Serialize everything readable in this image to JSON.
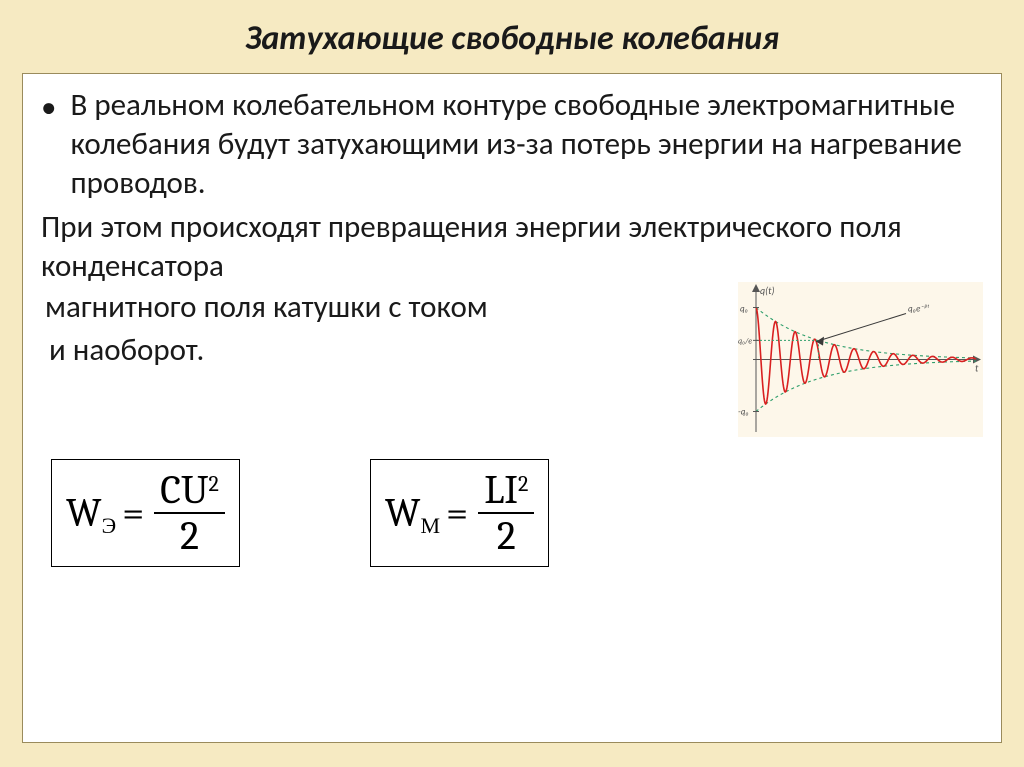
{
  "colors": {
    "slide_bg": "#f6eac2",
    "box_bg": "#ffffff",
    "box_border": "#9a8b5c",
    "title_color": "#1a1a1a",
    "text_color": "#1a1a1a",
    "bullet_color": "#1a1a1a",
    "formula_border": "#000000",
    "formula_text": "#000000"
  },
  "title": {
    "text": "Затухающие свободные колебания",
    "fontsize": 34
  },
  "body": {
    "fontsize": 31,
    "bullet_para": "В реальном колебательном контуре свободные электромагнитные колебания будут затухающими из-за потерь энергии на нагревание проводов.",
    "para2": "При этом происходят  превращения энергии электрического поля конденсатора",
    "line3": "магнитного поля катушки  с током",
    "line4": "и наоборот."
  },
  "formula1": {
    "W": "W",
    "sub": "Э",
    "eq": "=",
    "num_a": "C",
    "num_b": "U",
    "sup": "2",
    "den": "2",
    "fontsize": 40
  },
  "formula2": {
    "W": "W",
    "sub": "М",
    "eq": "=",
    "num_a": "L",
    "num_b": "I",
    "sup": "2",
    "den": "2",
    "fontsize": 40
  },
  "graph": {
    "bg": "#fdf7ea",
    "axis_color": "#555555",
    "wave_color": "#d92020",
    "envelope_color": "#2e9e6b",
    "arrow_color": "#3a3a3a",
    "label_y": "q(t)",
    "label_q0": "q₀",
    "label_neg_q0": "-q₀",
    "label_t": "t",
    "label_env": "q₀e⁻ᵝᵗ",
    "label_q0e": "q₀/e",
    "x_range": [
      0,
      220
    ],
    "y_range": [
      -55,
      55
    ],
    "amplitude": 52,
    "decay": 0.016,
    "freq": 0.32,
    "stroke_width_wave": 1.6,
    "stroke_width_env": 1.1,
    "dash": "3,3"
  }
}
